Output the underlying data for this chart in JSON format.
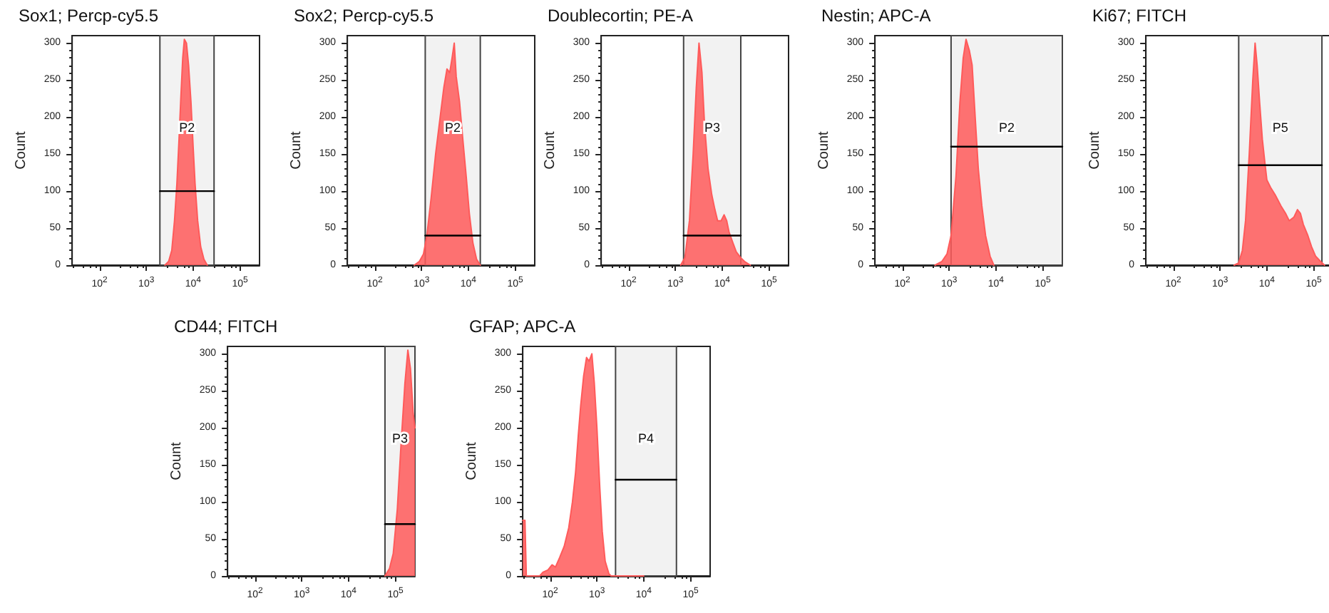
{
  "chart_data": [
    {
      "type": "area",
      "title": "Sox1; Percp-cy5.5",
      "ylabel": "Count",
      "log": "x",
      "marker": "none",
      "xlim": [
        26,
        262144
      ],
      "ylim": [
        0,
        310
      ],
      "xticks": [
        {
          "value": 100,
          "label": "10$^{2}$"
        },
        {
          "value": 1000,
          "label": "10$^{3}$"
        },
        {
          "value": 10000,
          "label": "10$^{4}$"
        },
        {
          "value": 100000,
          "label": "10$^{5}$"
        }
      ],
      "yticks": [
        0,
        50,
        100,
        150,
        200,
        250,
        300
      ],
      "series": [
        {
          "color": "#ff5a5a",
          "x": [
            2500,
            3000,
            3500,
            4000,
            4500,
            5000,
            5500,
            6000,
            6500,
            7200,
            8000,
            9000,
            10000,
            11000,
            12500,
            14500,
            17000,
            20000
          ],
          "values": [
            0,
            5,
            20,
            60,
            110,
            170,
            230,
            280,
            305,
            300,
            270,
            220,
            160,
            110,
            60,
            25,
            8,
            0
          ]
        },
        {
          "type": "line",
          "color": "#000000",
          "x": [
            1950,
            28000
          ],
          "values": [
            100,
            100
          ]
        }
      ],
      "bands": [
        {
          "axis": "x",
          "from": 1950,
          "to": 28000,
          "label": "P2"
        }
      ]
    },
    {
      "type": "area",
      "title": "Sox2; Percp-cy5.5",
      "ylabel": "Count",
      "log": "x",
      "marker": "none",
      "xlim": [
        26,
        262144
      ],
      "ylim": [
        0,
        310
      ],
      "xticks": [
        {
          "value": 100,
          "label": "10$^{2}$"
        },
        {
          "value": 1000,
          "label": "10$^{3}$"
        },
        {
          "value": 10000,
          "label": "10$^{4}$"
        },
        {
          "value": 100000,
          "label": "10$^{5}$"
        }
      ],
      "yticks": [
        0,
        50,
        100,
        150,
        200,
        250,
        300
      ],
      "series": [
        {
          "color": "#ff5a5a",
          "x": [
            700,
            900,
            1100,
            1300,
            1600,
            2000,
            2500,
            3000,
            3500,
            4000,
            4500,
            5000,
            5500,
            6500,
            7500,
            9000,
            10500,
            12500,
            15000,
            18000
          ],
          "values": [
            0,
            5,
            15,
            40,
            90,
            150,
            200,
            240,
            265,
            260,
            280,
            300,
            255,
            220,
            175,
            120,
            70,
            30,
            8,
            0
          ]
        },
        {
          "type": "line",
          "color": "#000000",
          "x": [
            1200,
            18000
          ],
          "values": [
            40,
            40
          ]
        }
      ],
      "bands": [
        {
          "axis": "x",
          "from": 1200,
          "to": 18000,
          "label": "P2"
        }
      ]
    },
    {
      "type": "area",
      "title": "Doublecortin; PE-A",
      "ylabel": "Count",
      "log": "x",
      "marker": "none",
      "xlim": [
        26,
        262144
      ],
      "ylim": [
        0,
        310
      ],
      "xticks": [
        {
          "value": 100,
          "label": "10$^{2}$"
        },
        {
          "value": 1000,
          "label": "10$^{3}$"
        },
        {
          "value": 10000,
          "label": "10$^{4}$"
        },
        {
          "value": 100000,
          "label": "10$^{5}$"
        }
      ],
      "yticks": [
        0,
        50,
        100,
        150,
        200,
        250,
        300
      ],
      "series": [
        {
          "color": "#ff5a5a",
          "x": [
            1300,
            1600,
            2000,
            2400,
            2800,
            3200,
            3700,
            4200,
            5000,
            6000,
            7000,
            8000,
            9500,
            11000,
            12500,
            14000,
            17000,
            20000,
            25000,
            30000,
            40000
          ],
          "values": [
            0,
            10,
            60,
            150,
            240,
            300,
            260,
            190,
            130,
            95,
            75,
            60,
            60,
            68,
            60,
            45,
            30,
            18,
            10,
            5,
            0
          ]
        },
        {
          "type": "line",
          "color": "#000000",
          "x": [
            1500,
            25000
          ],
          "values": [
            40,
            40
          ]
        }
      ],
      "bands": [
        {
          "axis": "x",
          "from": 1500,
          "to": 25000,
          "label": "P3"
        }
      ]
    },
    {
      "type": "area",
      "title": "Nestin; APC-A",
      "ylabel": "Count",
      "log": "x",
      "marker": "none",
      "xlim": [
        26,
        262144
      ],
      "ylim": [
        0,
        310
      ],
      "xticks": [
        {
          "value": 100,
          "label": "10$^{2}$"
        },
        {
          "value": 1000,
          "label": "10$^{3}$"
        },
        {
          "value": 10000,
          "label": "10$^{4}$"
        },
        {
          "value": 100000,
          "label": "10$^{5}$"
        }
      ],
      "yticks": [
        0,
        50,
        100,
        150,
        200,
        250,
        300
      ],
      "series": [
        {
          "color": "#ff5a5a",
          "x": [
            500,
            700,
            900,
            1100,
            1400,
            1700,
            2000,
            2300,
            2700,
            3100,
            3600,
            4200,
            5000,
            6000,
            7500,
            9000
          ],
          "values": [
            0,
            5,
            15,
            40,
            120,
            220,
            280,
            305,
            290,
            270,
            200,
            130,
            80,
            40,
            12,
            0
          ]
        },
        {
          "type": "line",
          "color": "#000000",
          "x": [
            1100,
            262144
          ],
          "values": [
            160,
            160
          ]
        }
      ],
      "bands": [
        {
          "axis": "x",
          "from": 1100,
          "to": 262144,
          "label": "P2"
        }
      ]
    },
    {
      "type": "area",
      "title": "Ki67; FITCH",
      "ylabel": "Count",
      "log": "x",
      "marker": "none",
      "xlim": [
        26,
        262144
      ],
      "ylim": [
        0,
        310
      ],
      "xticks": [
        {
          "value": 100,
          "label": "10$^{2}$"
        },
        {
          "value": 1000,
          "label": "10$^{3}$"
        },
        {
          "value": 10000,
          "label": "10$^{4}$"
        },
        {
          "value": 100000,
          "label": "10$^{5}$"
        }
      ],
      "yticks": [
        0,
        50,
        100,
        150,
        200,
        250,
        300
      ],
      "series": [
        {
          "color": "#ff5a5a",
          "x": [
            2000,
            2500,
            3000,
            3500,
            4200,
            5000,
            5600,
            6200,
            7000,
            8000,
            9000,
            10000,
            12000,
            15000,
            20000,
            25000,
            30000,
            38000,
            45000,
            52000,
            60000,
            75000,
            90000,
            110000,
            140000,
            170000
          ],
          "values": [
            0,
            3,
            20,
            60,
            150,
            250,
            300,
            270,
            220,
            170,
            140,
            115,
            105,
            95,
            80,
            70,
            60,
            65,
            75,
            70,
            55,
            40,
            25,
            12,
            5,
            0
          ]
        },
        {
          "type": "line",
          "color": "#000000",
          "x": [
            2500,
            150000
          ],
          "values": [
            135,
            135
          ]
        }
      ],
      "bands": [
        {
          "axis": "x",
          "from": 2500,
          "to": 150000,
          "label": "P5"
        }
      ]
    },
    {
      "type": "area",
      "title": "CD44; FITCH",
      "ylabel": "Count",
      "log": "x",
      "marker": "none",
      "xlim": [
        26,
        262144
      ],
      "ylim": [
        0,
        310
      ],
      "xticks": [
        {
          "value": 100,
          "label": "10$^{2}$"
        },
        {
          "value": 1000,
          "label": "10$^{3}$"
        },
        {
          "value": 10000,
          "label": "10$^{4}$"
        },
        {
          "value": 100000,
          "label": "10$^{5}$"
        }
      ],
      "yticks": [
        0,
        50,
        100,
        150,
        200,
        250,
        300
      ],
      "series": [
        {
          "color": "#ff5a5a",
          "x": [
            60000,
            75000,
            90000,
            110000,
            130000,
            160000,
            185000,
            210000,
            240000,
            262144
          ],
          "values": [
            0,
            10,
            30,
            90,
            170,
            260,
            305,
            280,
            220,
            200
          ]
        },
        {
          "type": "line",
          "color": "#000000",
          "x": [
            60000,
            262144
          ],
          "values": [
            70,
            70
          ]
        }
      ],
      "bands": [
        {
          "axis": "x",
          "from": 60000,
          "to": 262144,
          "label": "P3"
        }
      ]
    },
    {
      "type": "area",
      "title": "GFAP; APC-A",
      "ylabel": "Count",
      "log": "x",
      "marker": "none",
      "xlim": [
        26,
        262144
      ],
      "ylim": [
        0,
        310
      ],
      "xticks": [
        {
          "value": 100,
          "label": "10$^{2}$"
        },
        {
          "value": 1000,
          "label": "10$^{3}$"
        },
        {
          "value": 10000,
          "label": "10$^{4}$"
        },
        {
          "value": 100000,
          "label": "10$^{5}$"
        }
      ],
      "yticks": [
        0,
        50,
        100,
        150,
        200,
        250,
        300
      ],
      "series": [
        {
          "color": "#ff5a5a",
          "x": [
            26,
            29,
            31,
            60,
            70,
            90,
            110,
            130,
            160,
            200,
            250,
            300,
            350,
            400,
            450,
            520,
            600,
            680,
            780,
            880,
            1000,
            1150,
            1300,
            1500,
            1800,
            2000,
            10000
          ],
          "values": [
            75,
            75,
            0,
            0,
            5,
            8,
            15,
            12,
            25,
            40,
            65,
            100,
            140,
            190,
            230,
            270,
            295,
            290,
            300,
            260,
            200,
            120,
            60,
            20,
            3,
            0,
            0
          ]
        },
        {
          "type": "line",
          "color": "#000000",
          "x": [
            2500,
            50000
          ],
          "values": [
            130,
            130
          ]
        }
      ],
      "bands": [
        {
          "axis": "x",
          "from": 2500,
          "to": 50000,
          "label": "P4"
        }
      ]
    }
  ]
}
